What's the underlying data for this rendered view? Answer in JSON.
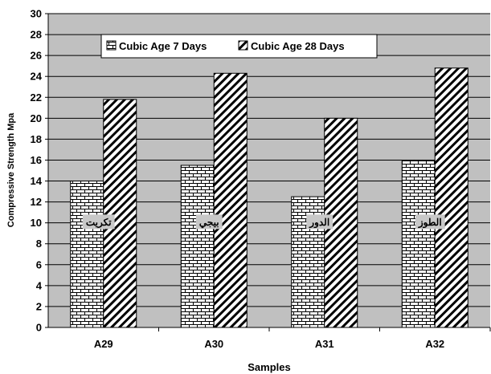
{
  "chart_data": {
    "type": "bar",
    "categories": [
      "A29",
      "A30",
      "A31",
      "A32"
    ],
    "series": [
      {
        "name": "Cubic Age 7 Days",
        "values": [
          14.0,
          15.5,
          12.5,
          16.0
        ],
        "pattern": "brick"
      },
      {
        "name": "Cubic Age 28 Days",
        "values": [
          21.8,
          24.3,
          20.0,
          24.8
        ],
        "pattern": "diagonal"
      }
    ],
    "annotations": [
      "تكريت",
      "بيجي",
      "الدور",
      "الطوز"
    ],
    "title": "",
    "xlabel": "Samples",
    "ylabel": "Compressive Strength Mpa",
    "ylim": [
      0,
      30
    ],
    "yticks": [
      0,
      2,
      4,
      6,
      8,
      10,
      12,
      14,
      16,
      18,
      20,
      22,
      24,
      26,
      28,
      30
    ],
    "grid": true,
    "legend_position": "top",
    "colors": {
      "plot_background": "#c0c0c0",
      "bar_fill": "#ffffff",
      "bar_stroke": "#000000",
      "gridline": "#000000",
      "annotation_box": "#c8c8c8"
    }
  }
}
